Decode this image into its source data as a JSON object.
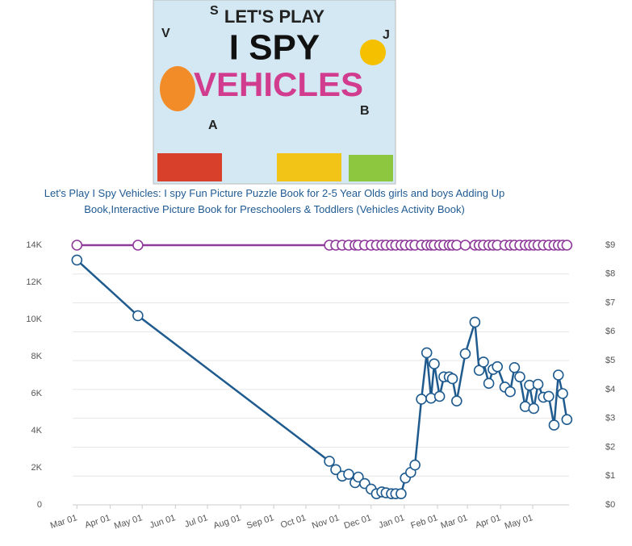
{
  "cover": {
    "texts": [
      "LET'S PLAY",
      "I SPY",
      "VEHICLES"
    ],
    "letters": [
      "S",
      "V",
      "J",
      "A",
      "B"
    ]
  },
  "chart_data": {
    "type": "line",
    "title": "Let's Play I Spy Vehicles: I spy Fun Picture Puzzle Book for 2-5 Year Olds girls and boys Adding Up Book,Interactive Picture Book for Preschoolers & Toddlers (Vehicles Activity Book)",
    "x": [
      "Mar 01",
      "Apr 27",
      "Oct 23",
      "Oct 29",
      "Nov 04",
      "Nov 10",
      "Nov 16",
      "Nov 19",
      "Nov 25",
      "Dec 01",
      "Dec 06",
      "Dec 11",
      "Dec 15",
      "Dec 20",
      "Dec 24",
      "Dec 29",
      "Jan 02",
      "Jan 07",
      "Jan 11",
      "Jan 17",
      "Jan 22",
      "Jan 26",
      "Jan 29",
      "Feb 03",
      "Feb 07",
      "Feb 12",
      "Feb 15",
      "Feb 19",
      "Feb 27",
      "Mar 08",
      "Mar 12",
      "Mar 16",
      "Mar 21",
      "Mar 25",
      "Mar 29",
      "Apr 05",
      "Apr 10",
      "Apr 14",
      "Apr 19",
      "Apr 24",
      "Apr 28",
      "May 02",
      "May 06",
      "May 11",
      "May 16",
      "May 21",
      "May 25",
      "May 29",
      "Jun 02"
    ],
    "series": [
      {
        "color": "#1f5b8e",
        "values": [
          13200,
          10200,
          2350,
          1900,
          1550,
          1650,
          1200,
          1500,
          1150,
          850,
          600,
          700,
          650,
          600,
          600,
          600,
          1450,
          1750,
          2150,
          5700,
          8200,
          5750,
          7600,
          5850,
          6900,
          6900,
          6800,
          5600,
          8150,
          9850,
          7250,
          7700,
          6550,
          7300,
          7450,
          6350,
          6100,
          7400,
          6900,
          5300,
          6450,
          5200,
          6500,
          5800,
          5850,
          4300,
          7000,
          6000,
          4600
        ]
      },
      {
        "color": "#8e3a9a",
        "axis": "y2",
        "values": [
          9,
          9,
          9,
          9,
          9,
          9,
          9,
          9,
          9,
          9,
          9,
          9,
          9,
          9,
          9,
          9,
          9,
          9,
          9,
          9,
          9,
          9,
          9,
          9,
          9,
          9,
          9,
          9,
          9,
          9,
          9,
          9,
          9,
          9,
          9,
          9,
          9,
          9,
          9,
          9,
          9,
          9,
          9,
          9,
          9,
          9,
          9,
          9,
          9
        ]
      }
    ],
    "xlim": [
      "Feb 25",
      "Jun 04"
    ],
    "xticks": [
      "Mar 01",
      "Apr 01",
      "May 01",
      "Jun 01",
      "Jul 01",
      "Aug 01",
      "Sep 01",
      "Oct 01",
      "Nov 01",
      "Dec 01",
      "Jan 01",
      "Feb 01",
      "Mar 01",
      "Apr 01",
      "May 01"
    ],
    "ylim": [
      0,
      14000
    ],
    "yticks": [
      0,
      {
        "value": 2000,
        "label": "2K"
      },
      {
        "value": 4000,
        "label": "4K"
      },
      {
        "value": 6000,
        "label": "6K"
      },
      {
        "value": 8000,
        "label": "8K"
      },
      {
        "value": 10000,
        "label": "10K"
      },
      {
        "value": 12000,
        "label": "12K"
      },
      {
        "value": 14000,
        "label": "14K"
      }
    ],
    "y2lim": [
      0,
      9
    ],
    "y2ticks": [
      {
        "value": 0,
        "label": "$0"
      },
      {
        "value": 1,
        "label": "$1"
      },
      {
        "value": 2,
        "label": "$2"
      },
      {
        "value": 3,
        "label": "$3"
      },
      {
        "value": 4,
        "label": "$4"
      },
      {
        "value": 5,
        "label": "$5"
      },
      {
        "value": 6,
        "label": "$6"
      },
      {
        "value": 7,
        "label": "$7"
      },
      {
        "value": 8,
        "label": "$8"
      },
      {
        "value": 9,
        "label": "$9"
      }
    ],
    "grid": true
  }
}
